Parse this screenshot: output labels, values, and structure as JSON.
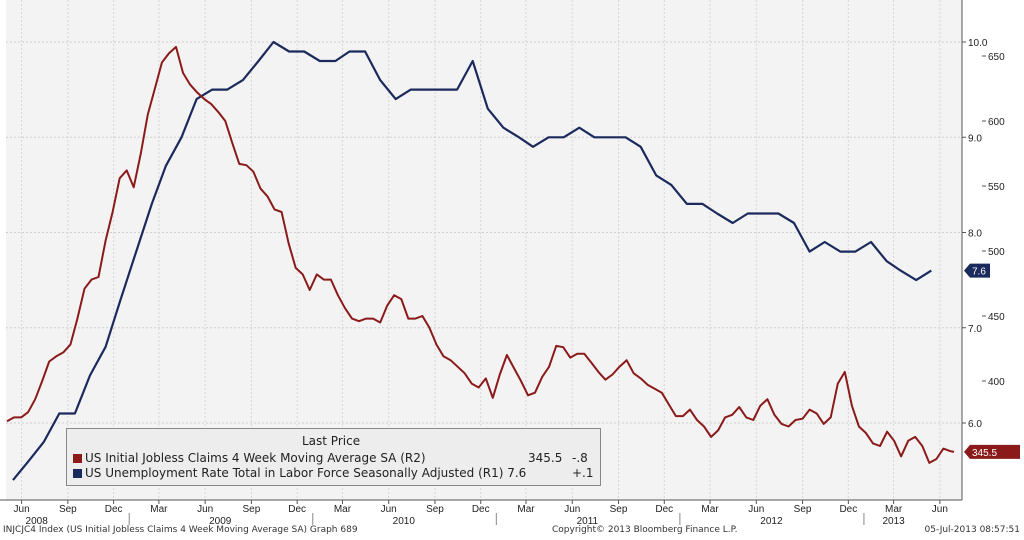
{
  "chart_data": {
    "type": "line",
    "legend_header": "Last Price",
    "legend_position": "bottom-left",
    "grid": true,
    "background": "#f3f3f3",
    "left_axis": {
      "ticks": [
        6.0,
        7.0,
        8.0,
        9.0,
        10.0
      ],
      "labels": [
        "6.0",
        "7.0",
        "8.0",
        "9.0",
        "10.0"
      ],
      "range": [
        5.5,
        10.0
      ]
    },
    "right_axis": {
      "ticks": [
        400,
        450,
        500,
        550,
        600,
        650
      ],
      "labels": [
        "400",
        "450",
        "500",
        "550",
        "600",
        "650"
      ]
    },
    "x_range": [
      "2008-05-01",
      "2013-07-15"
    ],
    "month_labels": [
      {
        "date": "2008-06",
        "label": "Jun"
      },
      {
        "date": "2008-09",
        "label": "Sep"
      },
      {
        "date": "2008-12",
        "label": "Dec"
      },
      {
        "date": "2009-03",
        "label": "Mar"
      },
      {
        "date": "2009-06",
        "label": "Jun"
      },
      {
        "date": "2009-09",
        "label": "Sep"
      },
      {
        "date": "2009-12",
        "label": "Dec"
      },
      {
        "date": "2010-03",
        "label": "Mar"
      },
      {
        "date": "2010-06",
        "label": "Jun"
      },
      {
        "date": "2010-09",
        "label": "Sep"
      },
      {
        "date": "2010-12",
        "label": "Dec"
      },
      {
        "date": "2011-03",
        "label": "Mar"
      },
      {
        "date": "2011-06",
        "label": "Jun"
      },
      {
        "date": "2011-09",
        "label": "Sep"
      },
      {
        "date": "2011-12",
        "label": "Dec"
      },
      {
        "date": "2012-03",
        "label": "Mar"
      },
      {
        "date": "2012-06",
        "label": "Jun"
      },
      {
        "date": "2012-09",
        "label": "Sep"
      },
      {
        "date": "2012-12",
        "label": "Dec"
      },
      {
        "date": "2013-03",
        "label": "Mar"
      },
      {
        "date": "2013-06",
        "label": "Jun"
      }
    ],
    "year_labels": [
      {
        "date": "2008-07",
        "label": "2008"
      },
      {
        "date": "2009-07",
        "label": "2009"
      },
      {
        "date": "2010-07",
        "label": "2010"
      },
      {
        "date": "2011-07",
        "label": "2011"
      },
      {
        "date": "2012-07",
        "label": "2012"
      },
      {
        "date": "2013-03",
        "label": "2013"
      }
    ],
    "series": [
      {
        "name": "US Initial Jobless Claims 4 Week Moving Average SA",
        "axis_tag": "(R2)",
        "color": "#8b1a1a",
        "last_value": "345.5",
        "change": "-.8",
        "tag_label": "345.5",
        "points": [
          [
            "2008-05-03",
            369
          ],
          [
            "2008-05-17",
            372
          ],
          [
            "2008-05-31",
            372
          ],
          [
            "2008-06-14",
            376
          ],
          [
            "2008-06-28",
            386
          ],
          [
            "2008-07-12",
            400
          ],
          [
            "2008-07-26",
            415
          ],
          [
            "2008-08-09",
            419
          ],
          [
            "2008-08-23",
            422
          ],
          [
            "2008-09-06",
            428
          ],
          [
            "2008-09-20",
            448
          ],
          [
            "2008-10-04",
            471
          ],
          [
            "2008-10-18",
            478
          ],
          [
            "2008-11-01",
            480
          ],
          [
            "2008-11-15",
            508
          ],
          [
            "2008-11-29",
            530
          ],
          [
            "2008-12-13",
            556
          ],
          [
            "2008-12-27",
            562
          ],
          [
            "2009-01-10",
            549
          ],
          [
            "2009-01-24",
            575
          ],
          [
            "2009-02-07",
            605
          ],
          [
            "2009-02-21",
            625
          ],
          [
            "2009-03-07",
            645
          ],
          [
            "2009-03-21",
            652
          ],
          [
            "2009-04-04",
            657
          ],
          [
            "2009-04-18",
            637
          ],
          [
            "2009-05-02",
            628
          ],
          [
            "2009-05-16",
            622
          ],
          [
            "2009-05-30",
            617
          ],
          [
            "2009-06-13",
            613
          ],
          [
            "2009-06-27",
            607
          ],
          [
            "2009-07-11",
            600
          ],
          [
            "2009-07-25",
            583
          ],
          [
            "2009-08-08",
            567
          ],
          [
            "2009-08-22",
            566
          ],
          [
            "2009-09-05",
            561
          ],
          [
            "2009-09-19",
            548
          ],
          [
            "2009-10-03",
            542
          ],
          [
            "2009-10-17",
            532
          ],
          [
            "2009-10-31",
            530
          ],
          [
            "2009-11-14",
            506
          ],
          [
            "2009-11-28",
            487
          ],
          [
            "2009-12-12",
            482
          ],
          [
            "2009-12-26",
            470
          ],
          [
            "2010-01-09",
            482
          ],
          [
            "2010-01-23",
            478
          ],
          [
            "2010-02-06",
            478
          ],
          [
            "2010-02-20",
            466
          ],
          [
            "2010-03-06",
            456
          ],
          [
            "2010-03-20",
            448
          ],
          [
            "2010-04-03",
            446
          ],
          [
            "2010-04-17",
            448
          ],
          [
            "2010-05-01",
            448
          ],
          [
            "2010-05-15",
            445
          ],
          [
            "2010-05-29",
            458
          ],
          [
            "2010-06-12",
            466
          ],
          [
            "2010-06-26",
            463
          ],
          [
            "2010-07-10",
            448
          ],
          [
            "2010-07-24",
            448
          ],
          [
            "2010-08-07",
            450
          ],
          [
            "2010-08-21",
            441
          ],
          [
            "2010-09-04",
            428
          ],
          [
            "2010-09-18",
            419
          ],
          [
            "2010-10-02",
            416
          ],
          [
            "2010-10-16",
            411
          ],
          [
            "2010-10-30",
            406
          ],
          [
            "2010-11-13",
            398
          ],
          [
            "2010-11-27",
            395
          ],
          [
            "2010-12-11",
            402
          ],
          [
            "2010-12-25",
            387
          ],
          [
            "2011-01-08",
            405
          ],
          [
            "2011-01-22",
            420
          ],
          [
            "2011-02-05",
            410
          ],
          [
            "2011-02-19",
            400
          ],
          [
            "2011-03-05",
            389
          ],
          [
            "2011-03-19",
            391
          ],
          [
            "2011-04-02",
            403
          ],
          [
            "2011-04-16",
            411
          ],
          [
            "2011-04-30",
            427
          ],
          [
            "2011-05-14",
            426
          ],
          [
            "2011-05-28",
            418
          ],
          [
            "2011-06-11",
            421
          ],
          [
            "2011-06-25",
            421
          ],
          [
            "2011-07-09",
            414
          ],
          [
            "2011-07-23",
            407
          ],
          [
            "2011-08-06",
            401
          ],
          [
            "2011-08-20",
            405
          ],
          [
            "2011-09-03",
            411
          ],
          [
            "2011-09-17",
            416
          ],
          [
            "2011-10-01",
            406
          ],
          [
            "2011-10-15",
            402
          ],
          [
            "2011-10-29",
            397
          ],
          [
            "2011-11-12",
            394
          ],
          [
            "2011-11-26",
            391
          ],
          [
            "2011-12-10",
            382
          ],
          [
            "2011-12-24",
            373
          ],
          [
            "2012-01-07",
            373
          ],
          [
            "2012-01-21",
            378
          ],
          [
            "2012-02-04",
            370
          ],
          [
            "2012-02-18",
            365
          ],
          [
            "2012-03-03",
            357
          ],
          [
            "2012-03-17",
            362
          ],
          [
            "2012-03-31",
            372
          ],
          [
            "2012-04-14",
            374
          ],
          [
            "2012-04-28",
            380
          ],
          [
            "2012-05-12",
            372
          ],
          [
            "2012-05-26",
            370
          ],
          [
            "2012-06-09",
            381
          ],
          [
            "2012-06-23",
            386
          ],
          [
            "2012-07-07",
            374
          ],
          [
            "2012-07-21",
            367
          ],
          [
            "2012-08-04",
            365
          ],
          [
            "2012-08-18",
            370
          ],
          [
            "2012-09-01",
            371
          ],
          [
            "2012-09-15",
            378
          ],
          [
            "2012-09-29",
            375
          ],
          [
            "2012-10-13",
            367
          ],
          [
            "2012-10-27",
            372
          ],
          [
            "2012-11-10",
            398
          ],
          [
            "2012-11-24",
            407
          ],
          [
            "2012-12-08",
            381
          ],
          [
            "2012-12-22",
            365
          ],
          [
            "2013-01-05",
            360
          ],
          [
            "2013-01-19",
            352
          ],
          [
            "2013-02-02",
            350
          ],
          [
            "2013-02-16",
            361
          ],
          [
            "2013-03-02",
            354
          ],
          [
            "2013-03-16",
            342
          ],
          [
            "2013-03-30",
            354
          ],
          [
            "2013-04-13",
            357
          ],
          [
            "2013-04-27",
            350
          ],
          [
            "2013-05-11",
            337
          ],
          [
            "2013-05-25",
            340
          ],
          [
            "2013-06-08",
            348
          ],
          [
            "2013-06-22",
            346
          ],
          [
            "2013-06-29",
            345.5
          ]
        ]
      },
      {
        "name": "US Unemployment Rate Total in Labor Force Seasonally Adjusted",
        "axis_tag": "(R1)",
        "color": "#1b2a5c",
        "last_value": "7.6",
        "change": "+.1",
        "tag_label": "7.6",
        "points": [
          [
            "2008-05-15",
            5.4
          ],
          [
            "2008-06-15",
            5.6
          ],
          [
            "2008-07-15",
            5.8
          ],
          [
            "2008-08-15",
            6.1
          ],
          [
            "2008-09-15",
            6.1
          ],
          [
            "2008-10-15",
            6.5
          ],
          [
            "2008-11-15",
            6.8
          ],
          [
            "2008-12-15",
            7.3
          ],
          [
            "2009-01-15",
            7.8
          ],
          [
            "2009-02-15",
            8.3
          ],
          [
            "2009-03-15",
            8.7
          ],
          [
            "2009-04-15",
            9.0
          ],
          [
            "2009-05-15",
            9.4
          ],
          [
            "2009-06-15",
            9.5
          ],
          [
            "2009-07-15",
            9.5
          ],
          [
            "2009-08-15",
            9.6
          ],
          [
            "2009-09-15",
            9.8
          ],
          [
            "2009-10-15",
            10.0
          ],
          [
            "2009-11-15",
            9.9
          ],
          [
            "2009-12-15",
            9.9
          ],
          [
            "2010-01-15",
            9.8
          ],
          [
            "2010-02-15",
            9.8
          ],
          [
            "2010-03-15",
            9.9
          ],
          [
            "2010-04-15",
            9.9
          ],
          [
            "2010-05-15",
            9.6
          ],
          [
            "2010-06-15",
            9.4
          ],
          [
            "2010-07-15",
            9.5
          ],
          [
            "2010-08-15",
            9.5
          ],
          [
            "2010-09-15",
            9.5
          ],
          [
            "2010-10-15",
            9.5
          ],
          [
            "2010-11-15",
            9.8
          ],
          [
            "2010-12-15",
            9.3
          ],
          [
            "2011-01-15",
            9.1
          ],
          [
            "2011-02-15",
            9.0
          ],
          [
            "2011-03-15",
            8.9
          ],
          [
            "2011-04-15",
            9.0
          ],
          [
            "2011-05-15",
            9.0
          ],
          [
            "2011-06-15",
            9.1
          ],
          [
            "2011-07-15",
            9.0
          ],
          [
            "2011-08-15",
            9.0
          ],
          [
            "2011-09-15",
            9.0
          ],
          [
            "2011-10-15",
            8.9
          ],
          [
            "2011-11-15",
            8.6
          ],
          [
            "2011-12-15",
            8.5
          ],
          [
            "2012-01-15",
            8.3
          ],
          [
            "2012-02-15",
            8.3
          ],
          [
            "2012-03-15",
            8.2
          ],
          [
            "2012-04-15",
            8.1
          ],
          [
            "2012-05-15",
            8.2
          ],
          [
            "2012-06-15",
            8.2
          ],
          [
            "2012-07-15",
            8.2
          ],
          [
            "2012-08-15",
            8.1
          ],
          [
            "2012-09-15",
            7.8
          ],
          [
            "2012-10-15",
            7.9
          ],
          [
            "2012-11-15",
            7.8
          ],
          [
            "2012-12-15",
            7.8
          ],
          [
            "2013-01-15",
            7.9
          ],
          [
            "2013-02-15",
            7.7
          ],
          [
            "2013-03-15",
            7.6
          ],
          [
            "2013-04-15",
            7.5
          ],
          [
            "2013-05-15",
            7.6
          ]
        ]
      }
    ]
  },
  "footer": {
    "left": "INJCJC4 Index (US Initial Jobless Claims 4 Week Moving Average SA) Graph 689",
    "center": "Copyright© 2013 Bloomberg Finance L.P.",
    "right": "05-Jul-2013 08:57:51"
  }
}
